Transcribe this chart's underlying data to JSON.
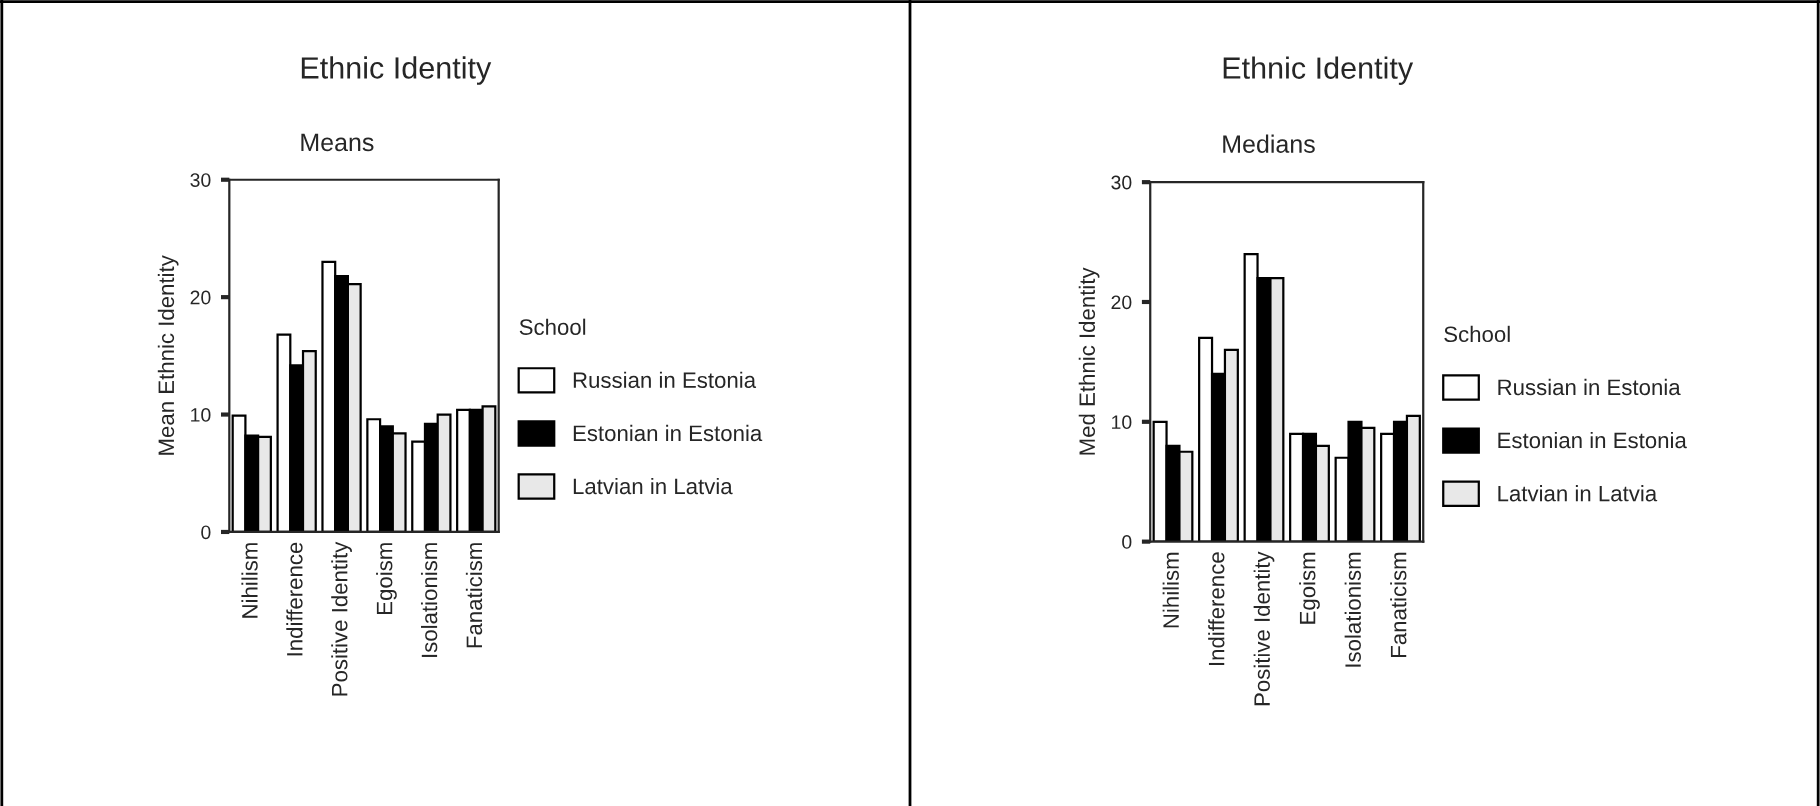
{
  "chart_data": [
    {
      "type": "bar",
      "title": "Ethnic Identity",
      "subtitle": "Means",
      "ylabel": "Mean Ethnic Identity",
      "legend_title": "School",
      "legend": "right",
      "categories": [
        "Nihilism",
        "Indifference",
        "Positive Identity",
        "Egoism",
        "Isolationism",
        "Fanaticism"
      ],
      "ylim": [
        0,
        30
      ],
      "yticks": [
        0,
        10,
        20,
        30
      ],
      "series": [
        {
          "name": "Russian in Estonia",
          "color": "#ffffff",
          "values": [
            9.9,
            16.8,
            23.0,
            9.6,
            7.7,
            10.4
          ]
        },
        {
          "name": "Estonian in Estonia",
          "color": "#000000",
          "values": [
            8.2,
            14.2,
            21.8,
            9.0,
            9.2,
            10.4
          ]
        },
        {
          "name": "Latvian in Latvia",
          "color": "#e8e8e8",
          "values": [
            8.1,
            15.4,
            21.1,
            8.4,
            10.0,
            10.7
          ]
        }
      ]
    },
    {
      "type": "bar",
      "title": "Ethnic Identity",
      "subtitle": "Medians",
      "ylabel": "Med Ethnic Identity",
      "legend_title": "School",
      "legend": "right",
      "categories": [
        "Nihilism",
        "Indifference",
        "Positive Identity",
        "Egoism",
        "Isolationism",
        "Fanaticism"
      ],
      "ylim": [
        0,
        30
      ],
      "yticks": [
        0,
        10,
        20,
        30
      ],
      "series": [
        {
          "name": "Russian in Estonia",
          "color": "#ffffff",
          "values": [
            10,
            17,
            24,
            9,
            7,
            9
          ]
        },
        {
          "name": "Estonian in Estonia",
          "color": "#000000",
          "values": [
            8,
            14,
            22,
            9,
            10,
            10
          ]
        },
        {
          "name": "Latvian in Latvia",
          "color": "#e8e8e8",
          "values": [
            7.5,
            16,
            22,
            8,
            9.5,
            10.5
          ]
        }
      ]
    }
  ]
}
